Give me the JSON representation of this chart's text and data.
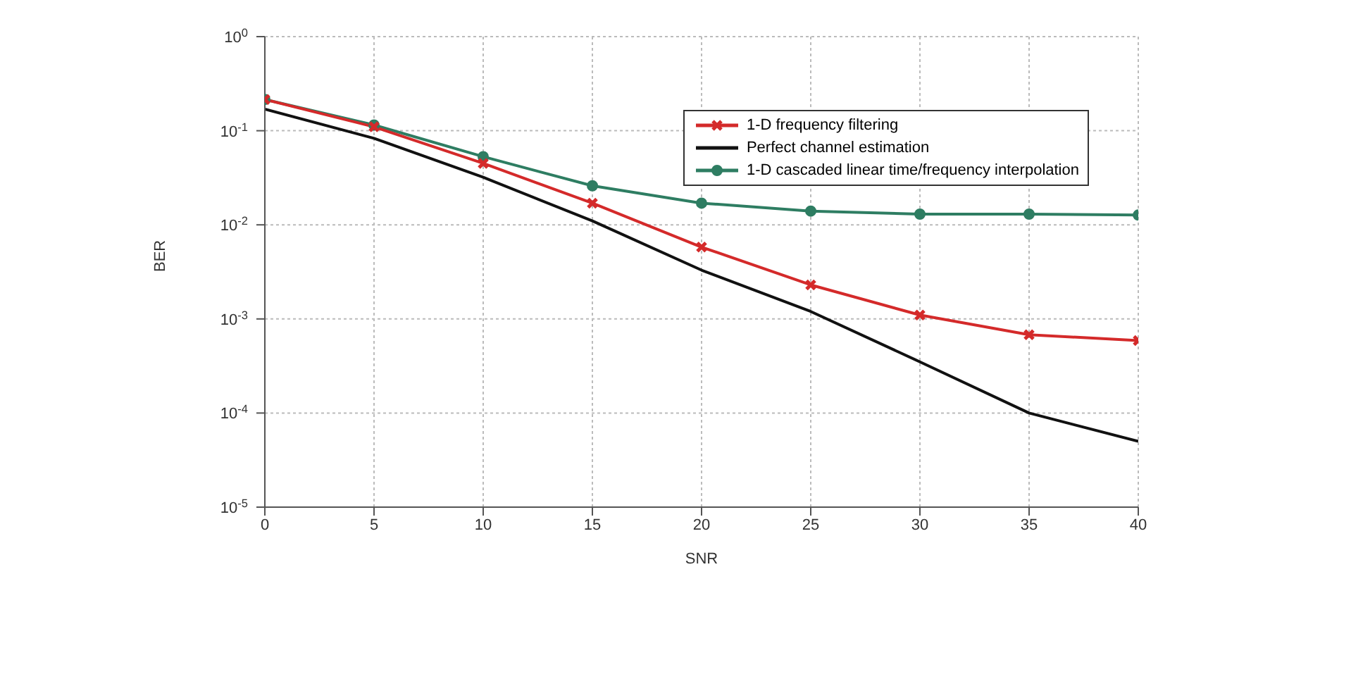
{
  "chart_data": {
    "type": "line",
    "xlabel": "SNR",
    "ylabel": "BER",
    "log": "y",
    "grid": true,
    "legend": "top right",
    "x": [
      0,
      5,
      10,
      15,
      20,
      25,
      30,
      35,
      40
    ],
    "xlim": [
      0,
      40
    ],
    "xticks": [
      0,
      5,
      10,
      15,
      20,
      25,
      30,
      35,
      40
    ],
    "ylim": [
      1e-05,
      1
    ],
    "yticks": [
      {
        "value": 1e-05,
        "label": "10$^{-5}$"
      },
      {
        "value": 0.0001,
        "label": "10$^{-4}$"
      },
      {
        "value": 0.001,
        "label": "10$^{-3}$"
      },
      {
        "value": 0.01,
        "label": "10$^{-2}$"
      },
      {
        "value": 0.1,
        "label": "10$^{-1}$"
      },
      {
        "value": 1,
        "label": "10$^{0}$"
      }
    ],
    "series": [
      {
        "name": "1-D frequency filtering",
        "color": "#d42a2a",
        "marker": "cross",
        "values": [
          0.215,
          0.11,
          0.045,
          0.017,
          0.0058,
          0.0023,
          0.0011,
          0.00068,
          0.00059
        ]
      },
      {
        "name": "Perfect channel estimation",
        "color": "#111111",
        "marker": "none",
        "values": [
          0.17,
          0.083,
          0.032,
          0.011,
          0.0033,
          0.0012,
          0.00035,
          0.0001,
          5e-05
        ]
      },
      {
        "name": "1-D cascaded linear time/frequency interpolation",
        "color": "#2e7d62",
        "marker": "circle",
        "values": [
          0.215,
          0.115,
          0.053,
          0.026,
          0.017,
          0.014,
          0.013,
          0.013,
          0.0127
        ]
      }
    ]
  }
}
